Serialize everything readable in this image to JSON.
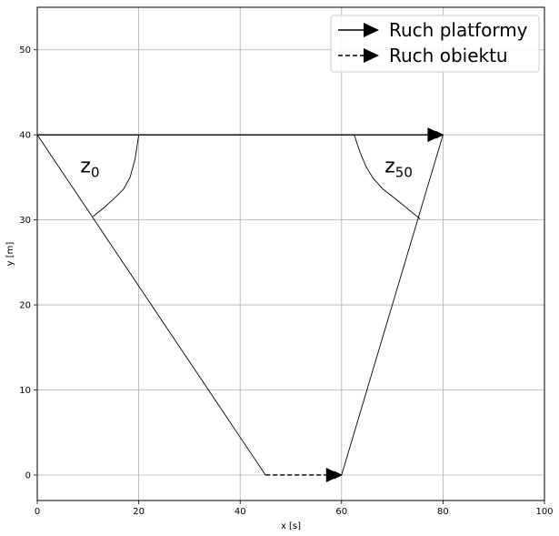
{
  "chart_data": {
    "type": "line",
    "xlabel": "x [s]",
    "ylabel": "y [m]",
    "xlim": [
      0,
      100
    ],
    "ylim": [
      -3,
      55
    ],
    "xticks": [
      0,
      20,
      40,
      60,
      80,
      100
    ],
    "yticks": [
      0,
      10,
      20,
      30,
      40,
      50
    ],
    "grid": true,
    "legend": {
      "placement": "top-right",
      "entries": [
        {
          "label": "Ruch platformy",
          "style": "solid"
        },
        {
          "label": "Ruch obiektu",
          "style": "dashed"
        }
      ]
    },
    "series": [
      {
        "name": "Ruch platformy",
        "style": "solid",
        "arrow": true,
        "x": [
          0,
          80
        ],
        "y": [
          40,
          40
        ]
      },
      {
        "name": "Ruch obiektu",
        "style": "dashed",
        "arrow": true,
        "x": [
          45,
          60
        ],
        "y": [
          0,
          0
        ]
      }
    ],
    "lines": [
      {
        "x": [
          0,
          45
        ],
        "y": [
          40,
          0
        ]
      },
      {
        "x": [
          60,
          80
        ],
        "y": [
          0,
          40
        ]
      }
    ],
    "arcs": [
      {
        "x": [
          20,
          19.3,
          18.3,
          17,
          15.3,
          13.3,
          11
        ],
        "y": [
          40,
          37.2,
          35,
          33.6,
          32.6,
          31.5,
          30.4
        ]
      },
      {
        "x": [
          62.5,
          63.6,
          64.8,
          66.2,
          68.2,
          71,
          75.5
        ],
        "y": [
          40,
          38,
          36.3,
          34.9,
          33.6,
          32.3,
          30.1
        ]
      }
    ],
    "annotations": [
      {
        "base": "z",
        "sub": "0",
        "x": 8.5,
        "y": 35.6
      },
      {
        "base": "z",
        "sub": "50",
        "x": 68.5,
        "y": 35.6
      }
    ]
  }
}
